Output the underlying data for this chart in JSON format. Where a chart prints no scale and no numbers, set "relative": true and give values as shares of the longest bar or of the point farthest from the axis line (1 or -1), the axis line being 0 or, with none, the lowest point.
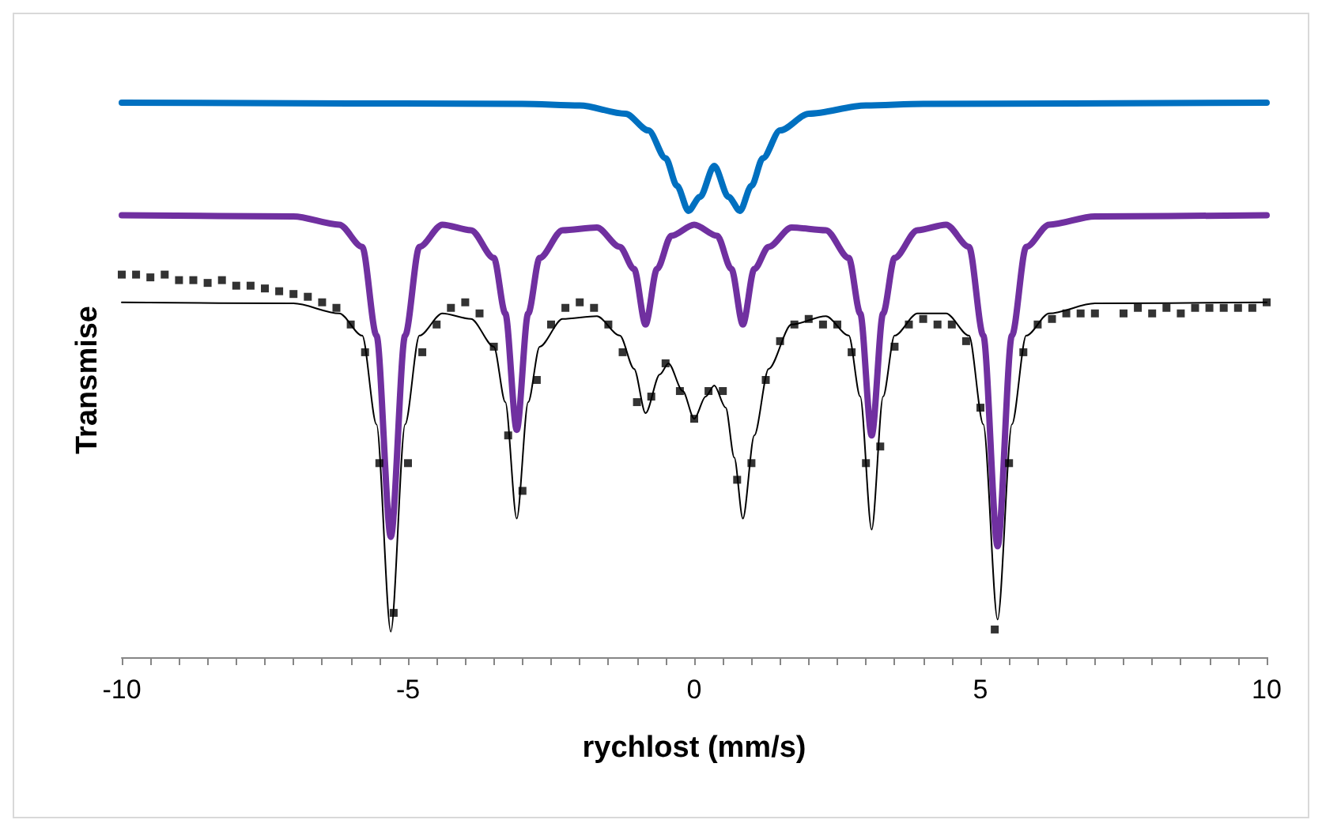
{
  "chart_data": {
    "type": "line",
    "relative": true,
    "xlabel": "rychlost (mm/s)",
    "ylabel": "Transmise",
    "xlim": [
      -10,
      10
    ],
    "xticks": [
      -10,
      {
        "value": -9.5,
        "label": null
      },
      {
        "value": -9,
        "label": null
      },
      {
        "value": -8.5,
        "label": null
      },
      {
        "value": -8,
        "label": null
      },
      {
        "value": -7.5,
        "label": null
      },
      {
        "value": -7,
        "label": null
      },
      {
        "value": -6.5,
        "label": null
      },
      {
        "value": -6,
        "label": null
      },
      {
        "value": -5.5,
        "label": null
      },
      -5,
      {
        "value": -4.5,
        "label": null
      },
      {
        "value": -4,
        "label": null
      },
      {
        "value": -3.5,
        "label": null
      },
      {
        "value": -3,
        "label": null
      },
      {
        "value": -2.5,
        "label": null
      },
      {
        "value": -2,
        "label": null
      },
      {
        "value": -1.5,
        "label": null
      },
      {
        "value": -1,
        "label": null
      },
      {
        "value": -0.5,
        "label": null
      },
      0,
      {
        "value": 0.5,
        "label": null
      },
      {
        "value": 1,
        "label": null
      },
      {
        "value": 1.5,
        "label": null
      },
      {
        "value": 2,
        "label": null
      },
      {
        "value": 2.5,
        "label": null
      },
      {
        "value": 3,
        "label": null
      },
      {
        "value": 3.5,
        "label": null
      },
      {
        "value": 4,
        "label": null
      },
      {
        "value": 4.5,
        "label": null
      },
      5,
      {
        "value": 5.5,
        "label": null
      },
      {
        "value": 6,
        "label": null
      },
      {
        "value": 6.5,
        "label": null
      },
      {
        "value": 7,
        "label": null
      },
      {
        "value": 7.5,
        "label": null
      },
      {
        "value": 8,
        "label": null
      },
      {
        "value": 8.5,
        "label": null
      },
      {
        "value": 9,
        "label": null
      },
      {
        "value": 9.5,
        "label": null
      },
      10
    ],
    "grid": false,
    "series": [
      {
        "color": "#0070c0",
        "marker": "none",
        "line_style": "solid",
        "x": [
          -10,
          -3,
          -2,
          -1.2,
          -0.8,
          -0.5,
          -0.3,
          -0.1,
          0.1,
          0.35,
          0.6,
          0.8,
          1.0,
          1.2,
          1.5,
          2,
          3,
          4,
          10
        ],
        "values": [
          1,
          0.998,
          0.995,
          0.98,
          0.95,
          0.9,
          0.85,
          0.805,
          0.83,
          0.886,
          0.83,
          0.805,
          0.85,
          0.9,
          0.95,
          0.98,
          0.995,
          0.998,
          1
        ]
      },
      {
        "color": "#7030a0",
        "marker": "none",
        "line_style": "solid",
        "x": [
          -10,
          -7,
          -6.2,
          -5.8,
          -5.55,
          -5.3,
          -5.05,
          -4.8,
          -4.4,
          -3.9,
          -3.5,
          -3.3,
          -3.1,
          -2.9,
          -2.7,
          -2.3,
          -1.7,
          -1.3,
          -1.05,
          -0.85,
          -0.65,
          -0.4,
          0,
          0.4,
          0.65,
          0.85,
          1.05,
          1.3,
          1.7,
          2.3,
          2.7,
          2.9,
          3.1,
          3.3,
          3.5,
          3.9,
          4.4,
          4.8,
          5.05,
          5.3,
          5.55,
          5.8,
          6.2,
          7,
          10
        ],
        "values": [
          0.797,
          0.795,
          0.78,
          0.74,
          0.58,
          0.217,
          0.58,
          0.74,
          0.78,
          0.77,
          0.72,
          0.62,
          0.41,
          0.62,
          0.72,
          0.77,
          0.775,
          0.74,
          0.7,
          0.6,
          0.7,
          0.76,
          0.78,
          0.76,
          0.7,
          0.6,
          0.7,
          0.74,
          0.775,
          0.77,
          0.72,
          0.62,
          0.4,
          0.62,
          0.72,
          0.77,
          0.78,
          0.74,
          0.58,
          0.2,
          0.58,
          0.74,
          0.78,
          0.795,
          0.797
        ]
      },
      {
        "type": "scatter",
        "color": "#000000",
        "marker": "square",
        "x": [
          -10,
          -9.75,
          -9.5,
          -9.25,
          -9,
          -8.75,
          -8.5,
          -8.25,
          -8,
          -7.75,
          -7.5,
          -7.25,
          -7,
          -6.75,
          -6.5,
          -6.25,
          -6,
          -5.75,
          -5.5,
          -5.25,
          -5,
          -4.75,
          -4.5,
          -4.25,
          -4,
          -3.75,
          -3.5,
          -3.25,
          -3,
          -2.75,
          -2.5,
          -2.25,
          -2,
          -1.75,
          -1.5,
          -1.25,
          -1,
          -0.75,
          -0.5,
          -0.25,
          0,
          0.25,
          0.5,
          0.75,
          1,
          1.25,
          1.5,
          1.75,
          2,
          2.25,
          2.5,
          2.75,
          3,
          3.25,
          3.5,
          3.75,
          4,
          4.25,
          4.5,
          4.75,
          5,
          5.25,
          5.5,
          5.75,
          6,
          6.25,
          6.5,
          6.75,
          7,
          7.5,
          7.75,
          8,
          8.25,
          8.5,
          8.75,
          9,
          9.25,
          9.5,
          9.75,
          10
        ],
        "values": [
          0.69,
          0.69,
          0.685,
          0.69,
          0.68,
          0.68,
          0.675,
          0.68,
          0.67,
          0.67,
          0.665,
          0.66,
          0.655,
          0.65,
          0.64,
          0.63,
          0.6,
          0.55,
          0.35,
          0.08,
          0.35,
          0.55,
          0.6,
          0.63,
          0.64,
          0.62,
          0.56,
          0.4,
          0.3,
          0.5,
          0.6,
          0.63,
          0.64,
          0.63,
          0.6,
          0.55,
          0.46,
          0.47,
          0.53,
          0.48,
          0.43,
          0.48,
          0.48,
          0.32,
          0.35,
          0.5,
          0.57,
          0.6,
          0.61,
          0.6,
          0.6,
          0.55,
          0.35,
          0.38,
          0.56,
          0.6,
          0.61,
          0.6,
          0.6,
          0.57,
          0.45,
          0.05,
          0.35,
          0.55,
          0.6,
          0.61,
          0.62,
          0.62,
          0.62,
          0.62,
          0.63,
          0.62,
          0.63,
          0.62,
          0.63,
          0.63,
          0.63,
          0.63,
          0.63,
          0.64
        ]
      },
      {
        "color": "#000000",
        "marker": "none",
        "line_style": "solid",
        "x": [
          -10,
          -7,
          -6.2,
          -5.8,
          -5.55,
          -5.3,
          -5.05,
          -4.8,
          -4.4,
          -3.9,
          -3.5,
          -3.3,
          -3.1,
          -2.9,
          -2.7,
          -2.3,
          -1.7,
          -1.3,
          -1.05,
          -0.85,
          -0.6,
          -0.45,
          -0.2,
          0,
          0.2,
          0.35,
          0.55,
          0.7,
          0.85,
          1.05,
          1.3,
          1.7,
          2.3,
          2.7,
          2.9,
          3.1,
          3.3,
          3.5,
          3.9,
          4.4,
          4.8,
          5.05,
          5.3,
          5.55,
          5.8,
          6.2,
          7,
          10
        ],
        "values": [
          0.64,
          0.638,
          0.62,
          0.58,
          0.42,
          0.046,
          0.42,
          0.58,
          0.62,
          0.61,
          0.56,
          0.46,
          0.25,
          0.46,
          0.56,
          0.61,
          0.615,
          0.58,
          0.52,
          0.44,
          0.51,
          0.53,
          0.48,
          0.43,
          0.47,
          0.49,
          0.45,
          0.36,
          0.25,
          0.4,
          0.52,
          0.6,
          0.615,
          0.58,
          0.47,
          0.23,
          0.47,
          0.58,
          0.62,
          0.62,
          0.58,
          0.42,
          0.068,
          0.42,
          0.58,
          0.62,
          0.638,
          0.64
        ]
      }
    ]
  }
}
